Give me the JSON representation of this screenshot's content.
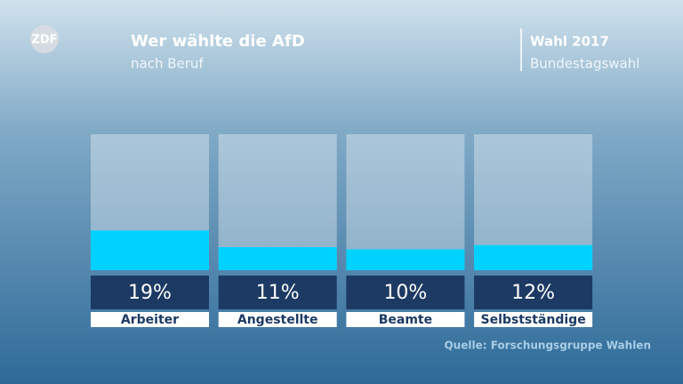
{
  "chart_data": {
    "type": "bar",
    "logo": "ZDF",
    "title": "Wer wählte die AfD",
    "subtitle": "nach Beruf",
    "annotations": [
      "Wahl 2017",
      "Bundestagswahl"
    ],
    "source": "Quelle: Forschungsgruppe Wahlen",
    "categories": [
      "Arbeiter",
      "Angestellte",
      "Beamte",
      "Selbstständige"
    ],
    "values": [
      19,
      11,
      10,
      12
    ],
    "value_labels": [
      "19%",
      "11%",
      "10%",
      "12%"
    ],
    "color": "#00d2ff",
    "ylim": [
      0,
      65
    ]
  }
}
